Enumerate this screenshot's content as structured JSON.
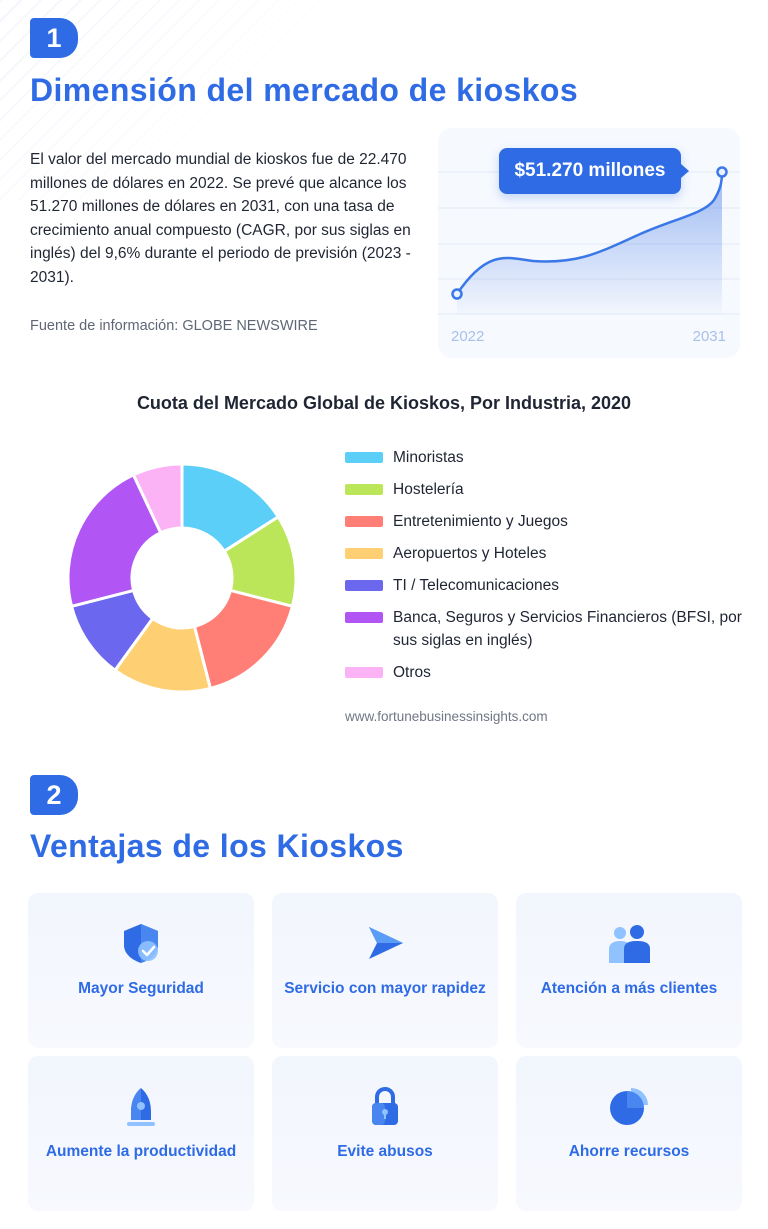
{
  "section1": {
    "number": "1",
    "title": "Dimensión del mercado de kioskos",
    "intro": "El valor del mercado mundial de kioskos fue de 22.470 millones de dólares en 2022. Se prevé que alcance los 51.270 millones de dólares en 2031, con una tasa de crecimiento anual compuesto (CAGR, por sus siglas en inglés) del 9,6% durante el periodo de previsión (2023 - 2031).",
    "source": "Fuente de información: GLOBE NEWSWIRE",
    "growth_card": {
      "callout": "$51.270 millones",
      "start_year": "2022",
      "end_year": "2031"
    }
  },
  "chart_data": {
    "type": "pie",
    "title": "Cuota del Mercado Global de Kioskos, Por Industria, 2020",
    "categories": [
      "Minoristas",
      "Hostelería",
      "Entretenimiento y Juegos",
      "Aeropuertos y Hoteles",
      "TI / Telecomunicaciones",
      "Banca, Seguros y Servicios Financieros (BFSI, por sus siglas en inglés)",
      "Otros"
    ],
    "values": [
      16,
      13,
      17,
      14,
      11,
      22,
      7
    ],
    "colors": [
      "#5ccff8",
      "#bce65a",
      "#ff7e76",
      "#ffd073",
      "#6b67ee",
      "#b155f5",
      "#fbb3f6"
    ],
    "legend_position": "right",
    "source": "www.fortunebusinessinsights.com"
  },
  "section2": {
    "number": "2",
    "title": "Ventajas de los Kioskos",
    "cards": [
      {
        "label": "Mayor Seguridad",
        "icon": "shield-check-icon"
      },
      {
        "label": "Servicio con mayor rapidez",
        "icon": "send-arrow-icon"
      },
      {
        "label": "Atención a más clientes",
        "icon": "people-icon"
      },
      {
        "label": "Aumente la productividad",
        "icon": "rocket-icon"
      },
      {
        "label": "Evite abusos",
        "icon": "lock-icon"
      },
      {
        "label": "Ahorre recursos",
        "icon": "pie-chart-icon"
      }
    ]
  },
  "colors": {
    "accent": "#2f6be5",
    "text": "#1f2533",
    "muted": "#5f6675",
    "card_bg": "#f3f7fd"
  }
}
